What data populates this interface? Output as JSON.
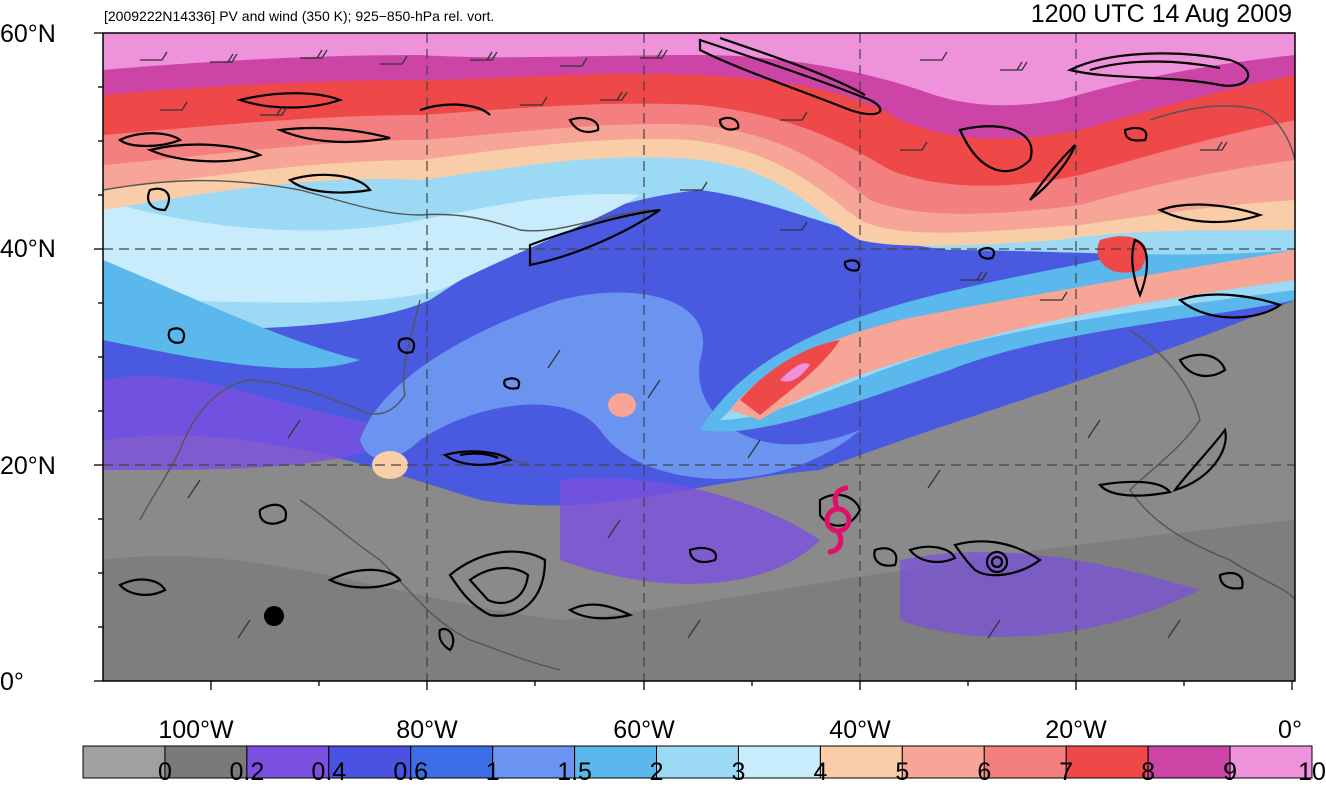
{
  "header": {
    "subtitle": "[2009222N14336] PV and wind (350 K); 925−850-hPa rel. vort.",
    "valid_time": "1200 UTC 14 Aug 2009"
  },
  "map": {
    "lat_ticks": [
      "60°N",
      "40°N",
      "20°N",
      "0°"
    ],
    "lon_ticks": [
      "100°W",
      "80°W",
      "60°W",
      "40°W",
      "20°W",
      "0°"
    ],
    "storm_symbol": "tropical-cyclone-icon",
    "marker_color": "#e0106a"
  },
  "colorbar": {
    "labels": [
      "0",
      "0.2",
      "0.4",
      "0.6",
      "1",
      "1.5",
      "2",
      "3",
      "4",
      "5",
      "6",
      "7",
      "8",
      "9",
      "10"
    ],
    "colors": [
      "#a0a0a0",
      "#7a7a7a",
      "#7b4fe0",
      "#4a52e0",
      "#3d6ee8",
      "#6a94ef",
      "#5ab8ec",
      "#9bd9f4",
      "#c8ecfb",
      "#f9cda8",
      "#f6a596",
      "#f37f81",
      "#ef4848",
      "#cc44a6",
      "#ef92dc"
    ]
  }
}
